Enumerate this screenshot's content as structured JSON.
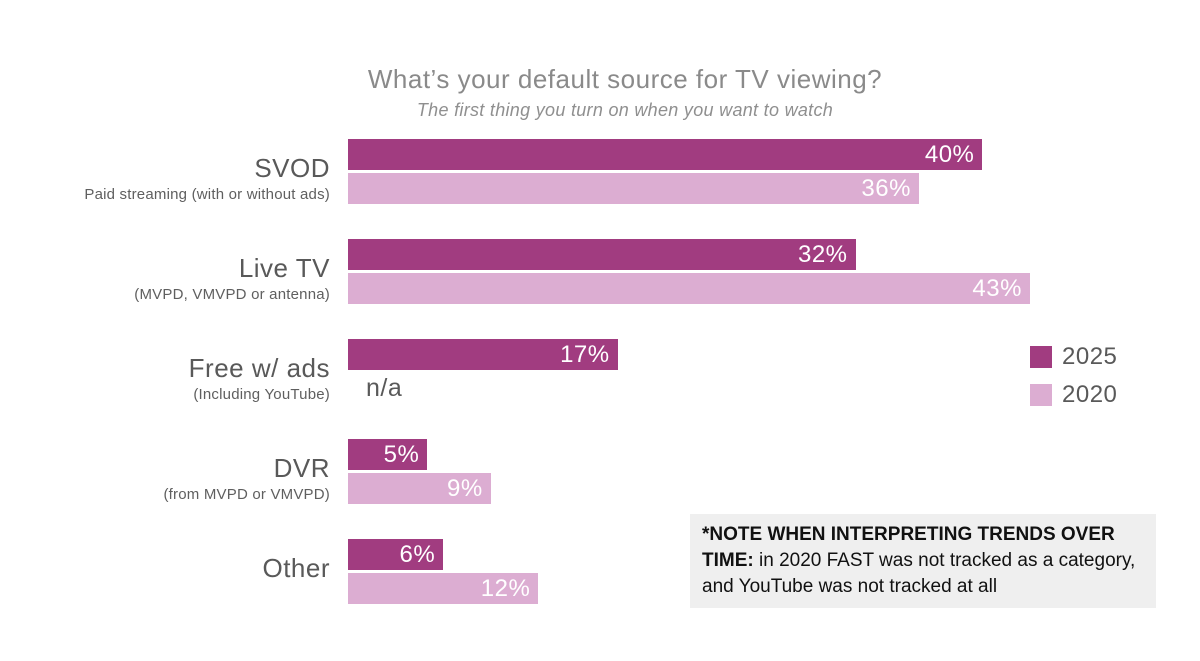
{
  "chart_data": {
    "type": "bar",
    "orientation": "horizontal",
    "title": "What’s your default source for TV viewing?",
    "subtitle": "The first thing you turn on when you want to watch",
    "categories": [
      {
        "label": "SVOD",
        "sublabel": "Paid streaming (with or without ads)"
      },
      {
        "label": "Live TV",
        "sublabel": "(MVPD, VMVPD or antenna)"
      },
      {
        "label": "Free w/ ads",
        "sublabel": "(Including YouTube)"
      },
      {
        "label": "DVR",
        "sublabel": "(from MVPD or VMVPD)"
      },
      {
        "label": "Other",
        "sublabel": ""
      }
    ],
    "series": [
      {
        "name": "2025",
        "color": "#a13c80",
        "values": [
          40,
          32,
          17,
          5,
          6
        ],
        "labels": [
          "40%",
          "32%",
          "17%",
          "5%",
          "6%"
        ]
      },
      {
        "name": "2020",
        "color": "#dcadd2",
        "values": [
          36,
          43,
          null,
          9,
          12
        ],
        "labels": [
          "36%",
          "43%",
          "n/a",
          "9%",
          "12%"
        ]
      }
    ],
    "xmax": 50,
    "grid": false,
    "legend_position": "right"
  },
  "note": {
    "bold": "*NOTE WHEN INTERPRETING TRENDS OVER TIME:",
    "text": " in 2020 FAST was not tracked as a category, and YouTube was not tracked at all"
  }
}
